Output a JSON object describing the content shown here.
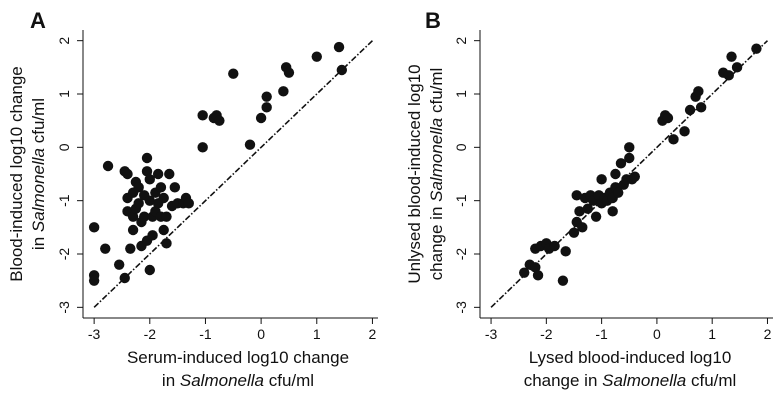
{
  "chart_data": [
    {
      "panel": "A",
      "type": "scatter",
      "xlabel": [
        "Serum-induced log10 change",
        "in ",
        "Salmonella",
        " cfu/ml"
      ],
      "ylabel": [
        "Blood-induced log10 change",
        "in ",
        "Salmonella",
        " cfu/ml"
      ],
      "xlim": [
        -3.2,
        2.1
      ],
      "ylim": [
        -3.2,
        2.2
      ],
      "xticks": [
        "-3",
        "-2",
        "-1",
        "0",
        "1",
        "2"
      ],
      "yticks": [
        "-3",
        "-2",
        "-1",
        "0",
        "1",
        "2"
      ],
      "identity_line": true,
      "points": [
        [
          -3.0,
          -1.5
        ],
        [
          -3.0,
          -2.4
        ],
        [
          -3.0,
          -2.5
        ],
        [
          -2.8,
          -1.9
        ],
        [
          -2.75,
          -0.35
        ],
        [
          -2.55,
          -2.2
        ],
        [
          -2.45,
          -2.45
        ],
        [
          -2.45,
          -0.45
        ],
        [
          -2.4,
          -0.5
        ],
        [
          -2.4,
          -0.95
        ],
        [
          -2.4,
          -1.2
        ],
        [
          -2.35,
          -1.9
        ],
        [
          -2.3,
          -0.85
        ],
        [
          -2.3,
          -1.3
        ],
        [
          -2.3,
          -1.55
        ],
        [
          -2.25,
          -0.65
        ],
        [
          -2.25,
          -1.15
        ],
        [
          -2.2,
          -0.75
        ],
        [
          -2.2,
          -1.05
        ],
        [
          -2.15,
          -1.4
        ],
        [
          -2.15,
          -1.85
        ],
        [
          -2.1,
          -0.9
        ],
        [
          -2.1,
          -1.3
        ],
        [
          -2.05,
          -0.2
        ],
        [
          -2.05,
          -0.45
        ],
        [
          -2.05,
          -1.75
        ],
        [
          -2.0,
          -0.6
        ],
        [
          -2.0,
          -1.0
        ],
        [
          -2.0,
          -2.3
        ],
        [
          -1.95,
          -1.3
        ],
        [
          -1.95,
          -1.65
        ],
        [
          -1.9,
          -0.85
        ],
        [
          -1.9,
          -1.2
        ],
        [
          -1.85,
          -0.5
        ],
        [
          -1.85,
          -1.05
        ],
        [
          -1.8,
          -0.75
        ],
        [
          -1.8,
          -1.3
        ],
        [
          -1.75,
          -0.95
        ],
        [
          -1.75,
          -1.55
        ],
        [
          -1.7,
          -1.3
        ],
        [
          -1.7,
          -1.8
        ],
        [
          -1.65,
          -0.5
        ],
        [
          -1.6,
          -1.1
        ],
        [
          -1.55,
          -0.75
        ],
        [
          -1.5,
          -1.05
        ],
        [
          -1.4,
          -1.05
        ],
        [
          -1.35,
          -0.95
        ],
        [
          -1.3,
          -1.05
        ],
        [
          -1.05,
          0.6
        ],
        [
          -1.05,
          0.0
        ],
        [
          -0.85,
          0.55
        ],
        [
          -0.8,
          0.6
        ],
        [
          -0.75,
          0.5
        ],
        [
          -0.5,
          1.38
        ],
        [
          -0.2,
          0.05
        ],
        [
          0.0,
          0.55
        ],
        [
          0.1,
          0.75
        ],
        [
          0.1,
          0.95
        ],
        [
          0.4,
          1.05
        ],
        [
          0.45,
          1.5
        ],
        [
          0.5,
          1.4
        ],
        [
          1.0,
          1.7
        ],
        [
          1.4,
          1.88
        ],
        [
          1.45,
          1.45
        ]
      ]
    },
    {
      "panel": "B",
      "type": "scatter",
      "xlabel": [
        "Lysed blood-induced log10",
        "change in ",
        "Salmonella",
        " cfu/ml"
      ],
      "ylabel": [
        "Unlysed blood-induced log10",
        "change in ",
        "Salmonella",
        " cfu/ml"
      ],
      "xlim": [
        -3.2,
        2.1
      ],
      "ylim": [
        -3.2,
        2.2
      ],
      "xticks": [
        "-3",
        "-2",
        "-1",
        "0",
        "1",
        "2"
      ],
      "yticks": [
        "-3",
        "-2",
        "-1",
        "0",
        "1",
        "2"
      ],
      "identity_line": true,
      "points": [
        [
          -2.4,
          -2.35
        ],
        [
          -2.3,
          -2.2
        ],
        [
          -2.2,
          -2.25
        ],
        [
          -2.15,
          -2.4
        ],
        [
          -2.2,
          -1.9
        ],
        [
          -2.1,
          -1.85
        ],
        [
          -2.0,
          -1.8
        ],
        [
          -1.95,
          -1.9
        ],
        [
          -1.85,
          -1.85
        ],
        [
          -1.7,
          -2.5
        ],
        [
          -1.65,
          -1.95
        ],
        [
          -1.5,
          -1.6
        ],
        [
          -1.45,
          -1.4
        ],
        [
          -1.4,
          -1.2
        ],
        [
          -1.45,
          -0.9
        ],
        [
          -1.35,
          -1.5
        ],
        [
          -1.3,
          -0.95
        ],
        [
          -1.25,
          -1.15
        ],
        [
          -1.2,
          -0.9
        ],
        [
          -1.15,
          -1.0
        ],
        [
          -1.1,
          -1.3
        ],
        [
          -1.05,
          -0.9
        ],
        [
          -1.0,
          -0.6
        ],
        [
          -1.0,
          -1.05
        ],
        [
          -0.95,
          -0.95
        ],
        [
          -0.9,
          -1.0
        ],
        [
          -0.85,
          -0.85
        ],
        [
          -0.8,
          -0.95
        ],
        [
          -0.8,
          -1.2
        ],
        [
          -0.75,
          -0.5
        ],
        [
          -0.75,
          -0.75
        ],
        [
          -0.7,
          -0.85
        ],
        [
          -0.65,
          -0.3
        ],
        [
          -0.6,
          -0.7
        ],
        [
          -0.55,
          -0.6
        ],
        [
          -0.5,
          0.0
        ],
        [
          -0.5,
          -0.2
        ],
        [
          -0.45,
          -0.6
        ],
        [
          -0.4,
          -0.55
        ],
        [
          0.1,
          0.5
        ],
        [
          0.15,
          0.6
        ],
        [
          0.2,
          0.55
        ],
        [
          0.3,
          0.15
        ],
        [
          0.5,
          0.3
        ],
        [
          0.6,
          0.7
        ],
        [
          0.7,
          0.95
        ],
        [
          0.75,
          1.05
        ],
        [
          0.8,
          0.75
        ],
        [
          1.2,
          1.4
        ],
        [
          1.3,
          1.35
        ],
        [
          1.35,
          1.7
        ],
        [
          1.45,
          1.5
        ],
        [
          1.8,
          1.85
        ]
      ]
    }
  ]
}
